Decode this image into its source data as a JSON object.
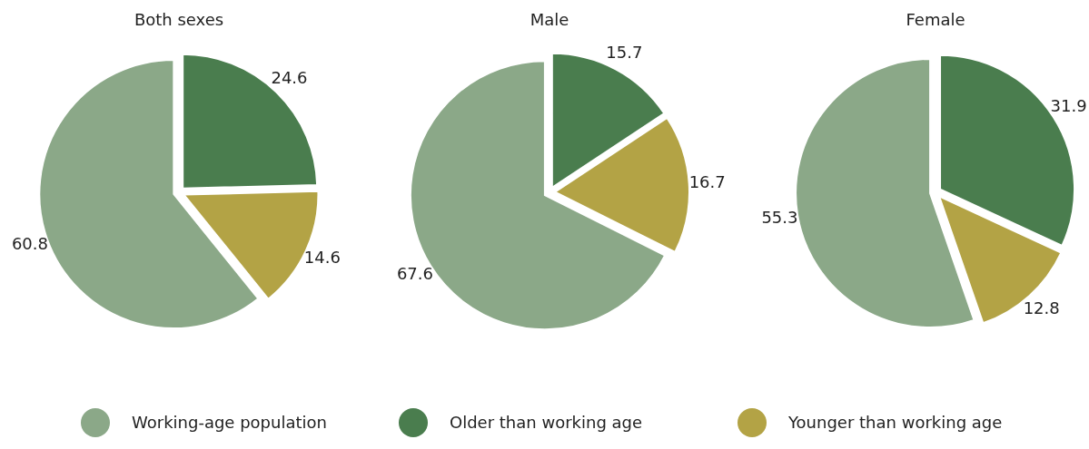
{
  "chart_data": [
    {
      "type": "pie",
      "title": "Both sexes",
      "categories": [
        "Working-age population",
        "Older than working age",
        "Younger than working age"
      ],
      "values": [
        60.8,
        24.6,
        14.6
      ],
      "colors": [
        "#8ba888",
        "#4a7d4e",
        "#b3a345"
      ],
      "data_labels": true,
      "legend": "bottom"
    },
    {
      "type": "pie",
      "title": "Male",
      "categories": [
        null,
        null,
        null
      ],
      "values": [
        67.6,
        15.7,
        16.7
      ],
      "colors": [
        "#8ba888",
        "#4a7d4e",
        "#b3a345"
      ],
      "data_labels": true
    },
    {
      "type": "pie",
      "title": "Female",
      "categories": [
        null,
        null,
        null
      ],
      "values": [
        55.3,
        31.9,
        12.8
      ],
      "colors": [
        "#8ba888",
        "#4a7d4e",
        "#b3a345"
      ],
      "data_labels": true
    }
  ]
}
